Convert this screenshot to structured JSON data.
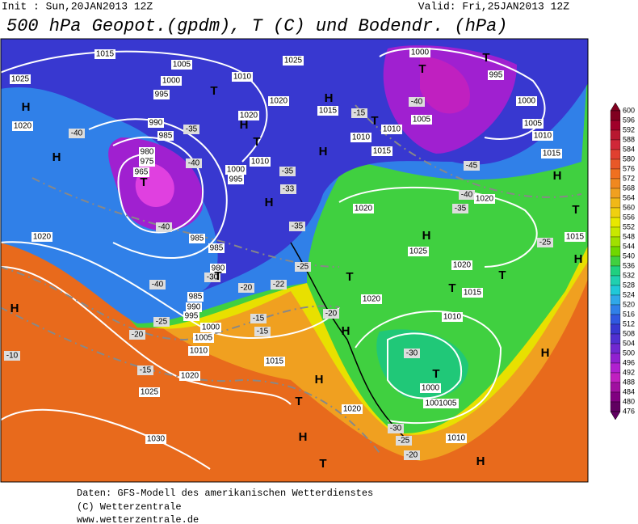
{
  "header": {
    "init": "Init : Sun,20JAN2013 12Z",
    "valid": "Valid: Fri,25JAN2013 12Z",
    "title": "500 hPa Geopot.(gpdm), T (C) und Bodendr. (hPa)"
  },
  "colorbar": {
    "labels": [
      600,
      596,
      592,
      588,
      584,
      580,
      576,
      572,
      568,
      564,
      560,
      556,
      552,
      548,
      544,
      540,
      536,
      532,
      528,
      524,
      520,
      516,
      512,
      508,
      504,
      500,
      496,
      492,
      488,
      484,
      480,
      476
    ],
    "colors": [
      "#800020",
      "#a0002a",
      "#b81830",
      "#d02838",
      "#e04030",
      "#e85828",
      "#f07020",
      "#f08820",
      "#f0a020",
      "#f0b818",
      "#f0d010",
      "#e8e800",
      "#c8e800",
      "#a0e000",
      "#70d800",
      "#40d040",
      "#20d080",
      "#20d0b0",
      "#20c8d8",
      "#30a8e8",
      "#3080e8",
      "#3058e0",
      "#3838d0",
      "#5030d0",
      "#7028d0",
      "#9020d0",
      "#b020d0",
      "#c020c0",
      "#a010a0",
      "#800080",
      "#600060"
    ]
  },
  "map_labels": [
    "1015",
    "1025",
    "1005",
    "1000",
    "995",
    "1010",
    "1020",
    "1025",
    "1020",
    "990",
    "985",
    "980",
    "975",
    "965",
    "T",
    "H",
    "H",
    "-40",
    "1020",
    "985",
    "985",
    "980",
    "-40",
    "985",
    "990",
    "995",
    "1000",
    "1005",
    "1010",
    "1015",
    "1020",
    "1025",
    "1030",
    "H",
    "-10",
    "-25",
    "-20",
    "-15",
    "-15",
    "-20",
    "H",
    "H",
    "T",
    "H",
    "T",
    "1020",
    "1000",
    "1001005",
    "1010",
    "T",
    "H",
    "-30",
    "-30",
    "-25",
    "-20",
    "1020",
    "1010",
    "1015",
    "1020",
    "T",
    "T",
    "H",
    "1025",
    "T",
    "1020",
    "-35",
    "-40",
    "1020",
    "-45",
    "H",
    "T",
    "H",
    "H",
    "1015",
    "-25",
    "1010",
    "1015",
    "1005",
    "1000",
    "995",
    "T",
    "T",
    "1000",
    "-40",
    "1005",
    "1010",
    "1015",
    "-15",
    "T",
    "H",
    "1015",
    "1010",
    "H",
    "-35",
    "-33",
    "H",
    "-35",
    "T",
    "1010",
    "1000",
    "995",
    "H",
    "1020",
    "T",
    "-35",
    "-40",
    "-40",
    "-30",
    "T",
    "-20",
    "-15",
    "-25",
    "-22"
  ],
  "footer": [
    "Daten: GFS-Modell des amerikanischen Wetterdienstes",
    "(C) Wetterzentrale",
    "www.wetterzentrale.de"
  ]
}
